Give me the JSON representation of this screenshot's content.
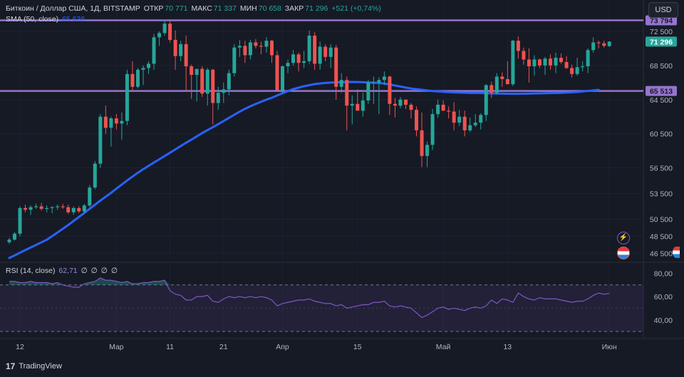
{
  "header": {
    "symbol": "Биткоин / Доллар США, 1Д, BITSTAMP",
    "open_label": "ОТКР",
    "open": "70 771",
    "high_label": "МАКС",
    "high": "71 337",
    "low_label": "МИН",
    "low": "70 658",
    "close_label": "ЗАКР",
    "close": "71 296",
    "change": "+521 (+0,74%)"
  },
  "sma_legend": {
    "label": "SMA (50, close)",
    "value": "65 636"
  },
  "rsi_legend": {
    "label": "RSI (14, close)",
    "value": "62,71",
    "extras": [
      "∅",
      "∅",
      "∅",
      "∅"
    ]
  },
  "currency_button": "USD",
  "brand": "TradingView",
  "colors": {
    "up": "#26a69a",
    "down": "#ef5350",
    "sma": "#2962ff",
    "hline": "#9575cd",
    "rsi": "#7e57c2",
    "background": "#161a25"
  },
  "chart_data": {
    "type": "candlestick",
    "price_axis": {
      "ticks": [
        72500,
        68500,
        64500,
        60500,
        56500,
        53500,
        50500,
        48500,
        46500
      ],
      "tick_labels": [
        "72 500",
        "68 500",
        "64 500",
        "60 500",
        "56 500",
        "53 500",
        "50 500",
        "48 500",
        "46 500"
      ],
      "range": [
        45700,
        75500
      ]
    },
    "price_tags": [
      {
        "value": 73794,
        "label": "73 794",
        "color": "#9575cd"
      },
      {
        "value": 71296,
        "label": "71 296",
        "color": "#26a69a"
      },
      {
        "value": 65513,
        "label": "65 513",
        "color": "#9575cd"
      }
    ],
    "horizontal_lines": [
      73794,
      65513
    ],
    "x_axis_labels": [
      {
        "label": "12",
        "index": 0
      },
      {
        "label": "Мар",
        "index": 18
      },
      {
        "label": "11",
        "index": 28
      },
      {
        "label": "21",
        "index": 38
      },
      {
        "label": "Апр",
        "index": 49
      },
      {
        "label": "15",
        "index": 63
      },
      {
        "label": "Май",
        "index": 79
      },
      {
        "label": "13",
        "index": 91
      },
      {
        "label": "Июн",
        "index": 110
      }
    ],
    "candles": [
      [
        47800,
        48300,
        47600,
        48100
      ],
      [
        48100,
        49000,
        48000,
        48800
      ],
      [
        48800,
        52000,
        48500,
        51800
      ],
      [
        51800,
        52200,
        51300,
        51600
      ],
      [
        51600,
        52100,
        51000,
        51900
      ],
      [
        51900,
        52300,
        51700,
        52000
      ],
      [
        52000,
        52400,
        51500,
        51700
      ],
      [
        51700,
        52100,
        51300,
        51800
      ],
      [
        51800,
        52000,
        51200,
        51900
      ],
      [
        51900,
        52200,
        51600,
        52000
      ],
      [
        52000,
        52300,
        51700,
        51900
      ],
      [
        51900,
        52200,
        51100,
        51300
      ],
      [
        51300,
        52000,
        51000,
        51800
      ],
      [
        51800,
        52000,
        51200,
        51400
      ],
      [
        51400,
        52300,
        51200,
        52100
      ],
      [
        52100,
        54500,
        51900,
        54200
      ],
      [
        54200,
        57300,
        54000,
        57000
      ],
      [
        57000,
        62800,
        56500,
        62500
      ],
      [
        62500,
        63800,
        60500,
        61200
      ],
      [
        61200,
        62500,
        59000,
        62300
      ],
      [
        62300,
        62800,
        61000,
        61700
      ],
      [
        61700,
        63000,
        59800,
        62000
      ],
      [
        62000,
        68000,
        61500,
        67500
      ],
      [
        67500,
        69000,
        65500,
        66000
      ],
      [
        66000,
        68200,
        65800,
        68000
      ],
      [
        68000,
        68500,
        66200,
        68200
      ],
      [
        68200,
        69000,
        67500,
        68700
      ],
      [
        68700,
        72200,
        68000,
        71800
      ],
      [
        71800,
        72500,
        70800,
        72300
      ],
      [
        72300,
        73800,
        72000,
        73400
      ],
      [
        73400,
        73750,
        71200,
        71500
      ],
      [
        71500,
        72600,
        68000,
        69600
      ],
      [
        69600,
        71400,
        69000,
        71000
      ],
      [
        71000,
        72000,
        65500,
        68400
      ],
      [
        68400,
        68600,
        64600,
        67400
      ],
      [
        67400,
        68000,
        64300,
        68100
      ],
      [
        68100,
        68400,
        64800,
        65200
      ],
      [
        65200,
        68200,
        63800,
        68000
      ],
      [
        68000,
        68100,
        61600,
        64100
      ],
      [
        64100,
        66000,
        63300,
        65300
      ],
      [
        65300,
        66500,
        64100,
        65700
      ],
      [
        65700,
        68000,
        65000,
        67600
      ],
      [
        67600,
        71000,
        67200,
        70600
      ],
      [
        70600,
        71500,
        69500,
        70800
      ],
      [
        70800,
        71400,
        68800,
        69700
      ],
      [
        69700,
        71500,
        69200,
        71200
      ],
      [
        71200,
        71600,
        70500,
        70800
      ],
      [
        70800,
        71300,
        69800,
        70700
      ],
      [
        70700,
        71800,
        70000,
        71400
      ],
      [
        71400,
        71500,
        68800,
        69700
      ],
      [
        69700,
        70200,
        65600,
        65600
      ],
      [
        65600,
        68500,
        65300,
        68400
      ],
      [
        68400,
        69200,
        67600,
        68800
      ],
      [
        68800,
        70300,
        68500,
        69800
      ],
      [
        69800,
        70000,
        67800,
        68800
      ],
      [
        68800,
        70200,
        68200,
        69000
      ],
      [
        69000,
        72600,
        68700,
        72000
      ],
      [
        72000,
        72400,
        68000,
        68700
      ],
      [
        68700,
        71300,
        68000,
        70700
      ],
      [
        70700,
        71000,
        69000,
        69500
      ],
      [
        69500,
        71000,
        68200,
        70600
      ],
      [
        70600,
        70900,
        64500,
        66000
      ],
      [
        66000,
        67600,
        65300,
        66800
      ],
      [
        66800,
        67200,
        60900,
        63800
      ],
      [
        63800,
        65000,
        61600,
        64000
      ],
      [
        64000,
        65700,
        63300,
        63200
      ],
      [
        63200,
        65300,
        62500,
        64400
      ],
      [
        64400,
        66800,
        64000,
        66500
      ],
      [
        66500,
        67200,
        64000,
        66500
      ],
      [
        66500,
        67100,
        62800,
        66800
      ],
      [
        66800,
        67800,
        66200,
        67200
      ],
      [
        67200,
        67300,
        62700,
        64000
      ],
      [
        64000,
        64700,
        62400,
        63800
      ],
      [
        63800,
        64800,
        63500,
        64500
      ],
      [
        64500,
        64500,
        63400,
        63900
      ],
      [
        63900,
        64100,
        62300,
        63300
      ],
      [
        63300,
        63700,
        60200,
        60900
      ],
      [
        60900,
        63000,
        56600,
        57900
      ],
      [
        57900,
        59600,
        56600,
        59200
      ],
      [
        59200,
        63400,
        58600,
        62800
      ],
      [
        62800,
        64500,
        62400,
        63900
      ],
      [
        63900,
        64400,
        63200,
        63200
      ],
      [
        63200,
        63700,
        62300,
        63100
      ],
      [
        63100,
        64200,
        60900,
        61800
      ],
      [
        61800,
        63300,
        61400,
        62500
      ],
      [
        62500,
        63200,
        60200,
        60900
      ],
      [
        60900,
        62400,
        60700,
        61500
      ],
      [
        61500,
        62800,
        61300,
        61800
      ],
      [
        61800,
        62900,
        61000,
        62700
      ],
      [
        62700,
        66300,
        62000,
        66200
      ],
      [
        66200,
        66600,
        64700,
        65300
      ],
      [
        65300,
        67600,
        65100,
        67200
      ],
      [
        67200,
        67700,
        66000,
        66900
      ],
      [
        66900,
        69000,
        66500,
        66300
      ],
      [
        66300,
        71500,
        66100,
        71400
      ],
      [
        71400,
        71900,
        69300,
        70200
      ],
      [
        70200,
        70600,
        68600,
        69200
      ],
      [
        69200,
        70500,
        66500,
        68400
      ],
      [
        68400,
        69700,
        67300,
        69200
      ],
      [
        69200,
        69300,
        68200,
        68500
      ],
      [
        68500,
        69500,
        67400,
        69300
      ],
      [
        69300,
        69800,
        68000,
        68500
      ],
      [
        68500,
        70000,
        67600,
        69400
      ],
      [
        69400,
        69900,
        68700,
        68900
      ],
      [
        68900,
        69600,
        68100,
        68200
      ],
      [
        68200,
        68600,
        67100,
        67500
      ],
      [
        67500,
        69400,
        67300,
        68300
      ],
      [
        68300,
        69000,
        67800,
        68400
      ],
      [
        68400,
        70500,
        67600,
        70300
      ],
      [
        70300,
        71800,
        70000,
        71200
      ],
      [
        71200,
        71400,
        70500,
        71100
      ],
      [
        71100,
        71400,
        70600,
        70800
      ],
      [
        70771,
        71337,
        70658,
        71296
      ]
    ],
    "sma_50": [
      45950,
      46250,
      46570,
      46880,
      47180,
      47480,
      47780,
      48090,
      48510,
      48930,
      49370,
      49810,
      50280,
      50750,
      51220,
      51710,
      52190,
      52670,
      53130,
      53580,
      54070,
      54550,
      55030,
      55480,
      55930,
      56350,
      56740,
      57130,
      57510,
      57890,
      58280,
      58670,
      59060,
      59450,
      59810,
      60200,
      60580,
      60930,
      61270,
      61630,
      61990,
      62360,
      62730,
      63090,
      63420,
      63720,
      63990,
      64240,
      64500,
      64720,
      64980,
      65250,
      65500,
      65730,
      65900,
      66070,
      66190,
      66320,
      66390,
      66450,
      66500,
      66530,
      66550,
      66560,
      66570,
      66560,
      66540,
      66510,
      66480,
      66440,
      66380,
      66270,
      66150,
      66030,
      65910,
      65800,
      65720,
      65650,
      65570,
      65500,
      65460,
      65420,
      65380,
      65350,
      65330,
      65310,
      65290,
      65280,
      65270,
      65250,
      65230,
      65210,
      65200,
      65190,
      65180,
      65180,
      65190,
      65200,
      65220,
      65230,
      65250,
      65260,
      65270,
      65300,
      65330,
      65360,
      65400,
      65450,
      65520,
      65580,
      65636
    ],
    "rsi": {
      "levels": [
        80,
        60,
        40
      ],
      "level_labels": [
        "80,00",
        "60,00",
        "40,00"
      ],
      "band": [
        70,
        30
      ],
      "range": [
        27,
        87
      ],
      "values": [
        73,
        73,
        72,
        72,
        73,
        72,
        72,
        72,
        71,
        72,
        70,
        69,
        68,
        68,
        71,
        72,
        73,
        76,
        74,
        74,
        73,
        72,
        73,
        71,
        71,
        72,
        72,
        73,
        73,
        74,
        65,
        62,
        61,
        57,
        57,
        60,
        60,
        61,
        56,
        55,
        58,
        60,
        59,
        60,
        59,
        60,
        59,
        60,
        59,
        57,
        52,
        54,
        55,
        56,
        57,
        57,
        58,
        56,
        55,
        54,
        54,
        52,
        53,
        50,
        51,
        52,
        53,
        53,
        55,
        55,
        56,
        52,
        51,
        52,
        51,
        50,
        46,
        42,
        44,
        47,
        50,
        51,
        49,
        50,
        49,
        48,
        50,
        51,
        50,
        52,
        57,
        54,
        58,
        57,
        55,
        63,
        60,
        58,
        57,
        59,
        58,
        58,
        58,
        57,
        56,
        55,
        56,
        56,
        58,
        61,
        63,
        62,
        62.71
      ]
    },
    "current_price": 71296
  }
}
